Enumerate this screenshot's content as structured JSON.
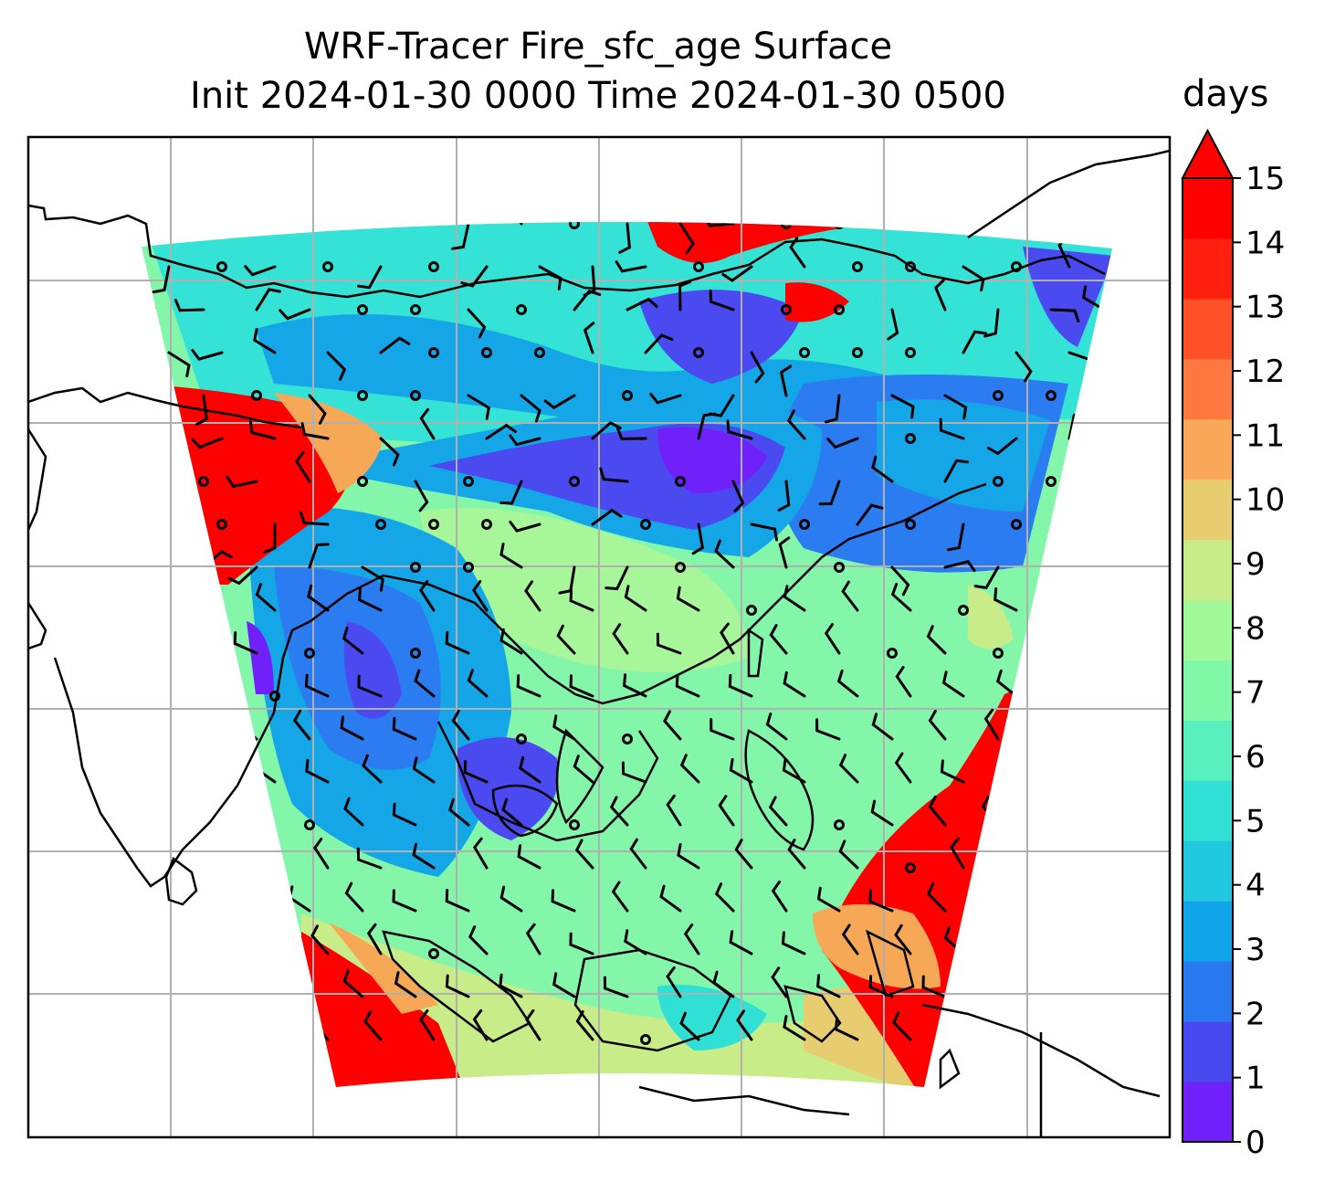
{
  "title": {
    "line1": "WRF-Tracer Fire_sfc_age Surface",
    "line2": "Init 2024-01-30 0000 Time 2024-01-30 0500"
  },
  "colorbar": {
    "label": "days",
    "ticks": [
      "0",
      "1",
      "2",
      "3",
      "4",
      "5",
      "6",
      "7",
      "8",
      "9",
      "10",
      "11",
      "12",
      "13",
      "14",
      "15"
    ],
    "extend": "max",
    "colors": [
      "#7020f8",
      "#4848f0",
      "#2878f0",
      "#10a4e8",
      "#20c8e0",
      "#30e0d4",
      "#58f0bc",
      "#80f8a8",
      "#a0f898",
      "#c8ec88",
      "#e8cc70",
      "#f8a858",
      "#ff7840",
      "#ff5028",
      "#ff2010",
      "#ff0000"
    ]
  },
  "map": {
    "grid": "on",
    "field": "Fire_sfc_age",
    "overlays": [
      "coastlines",
      "wind-barbs",
      "calm-circles",
      "lat-lon-gridlines"
    ]
  }
}
